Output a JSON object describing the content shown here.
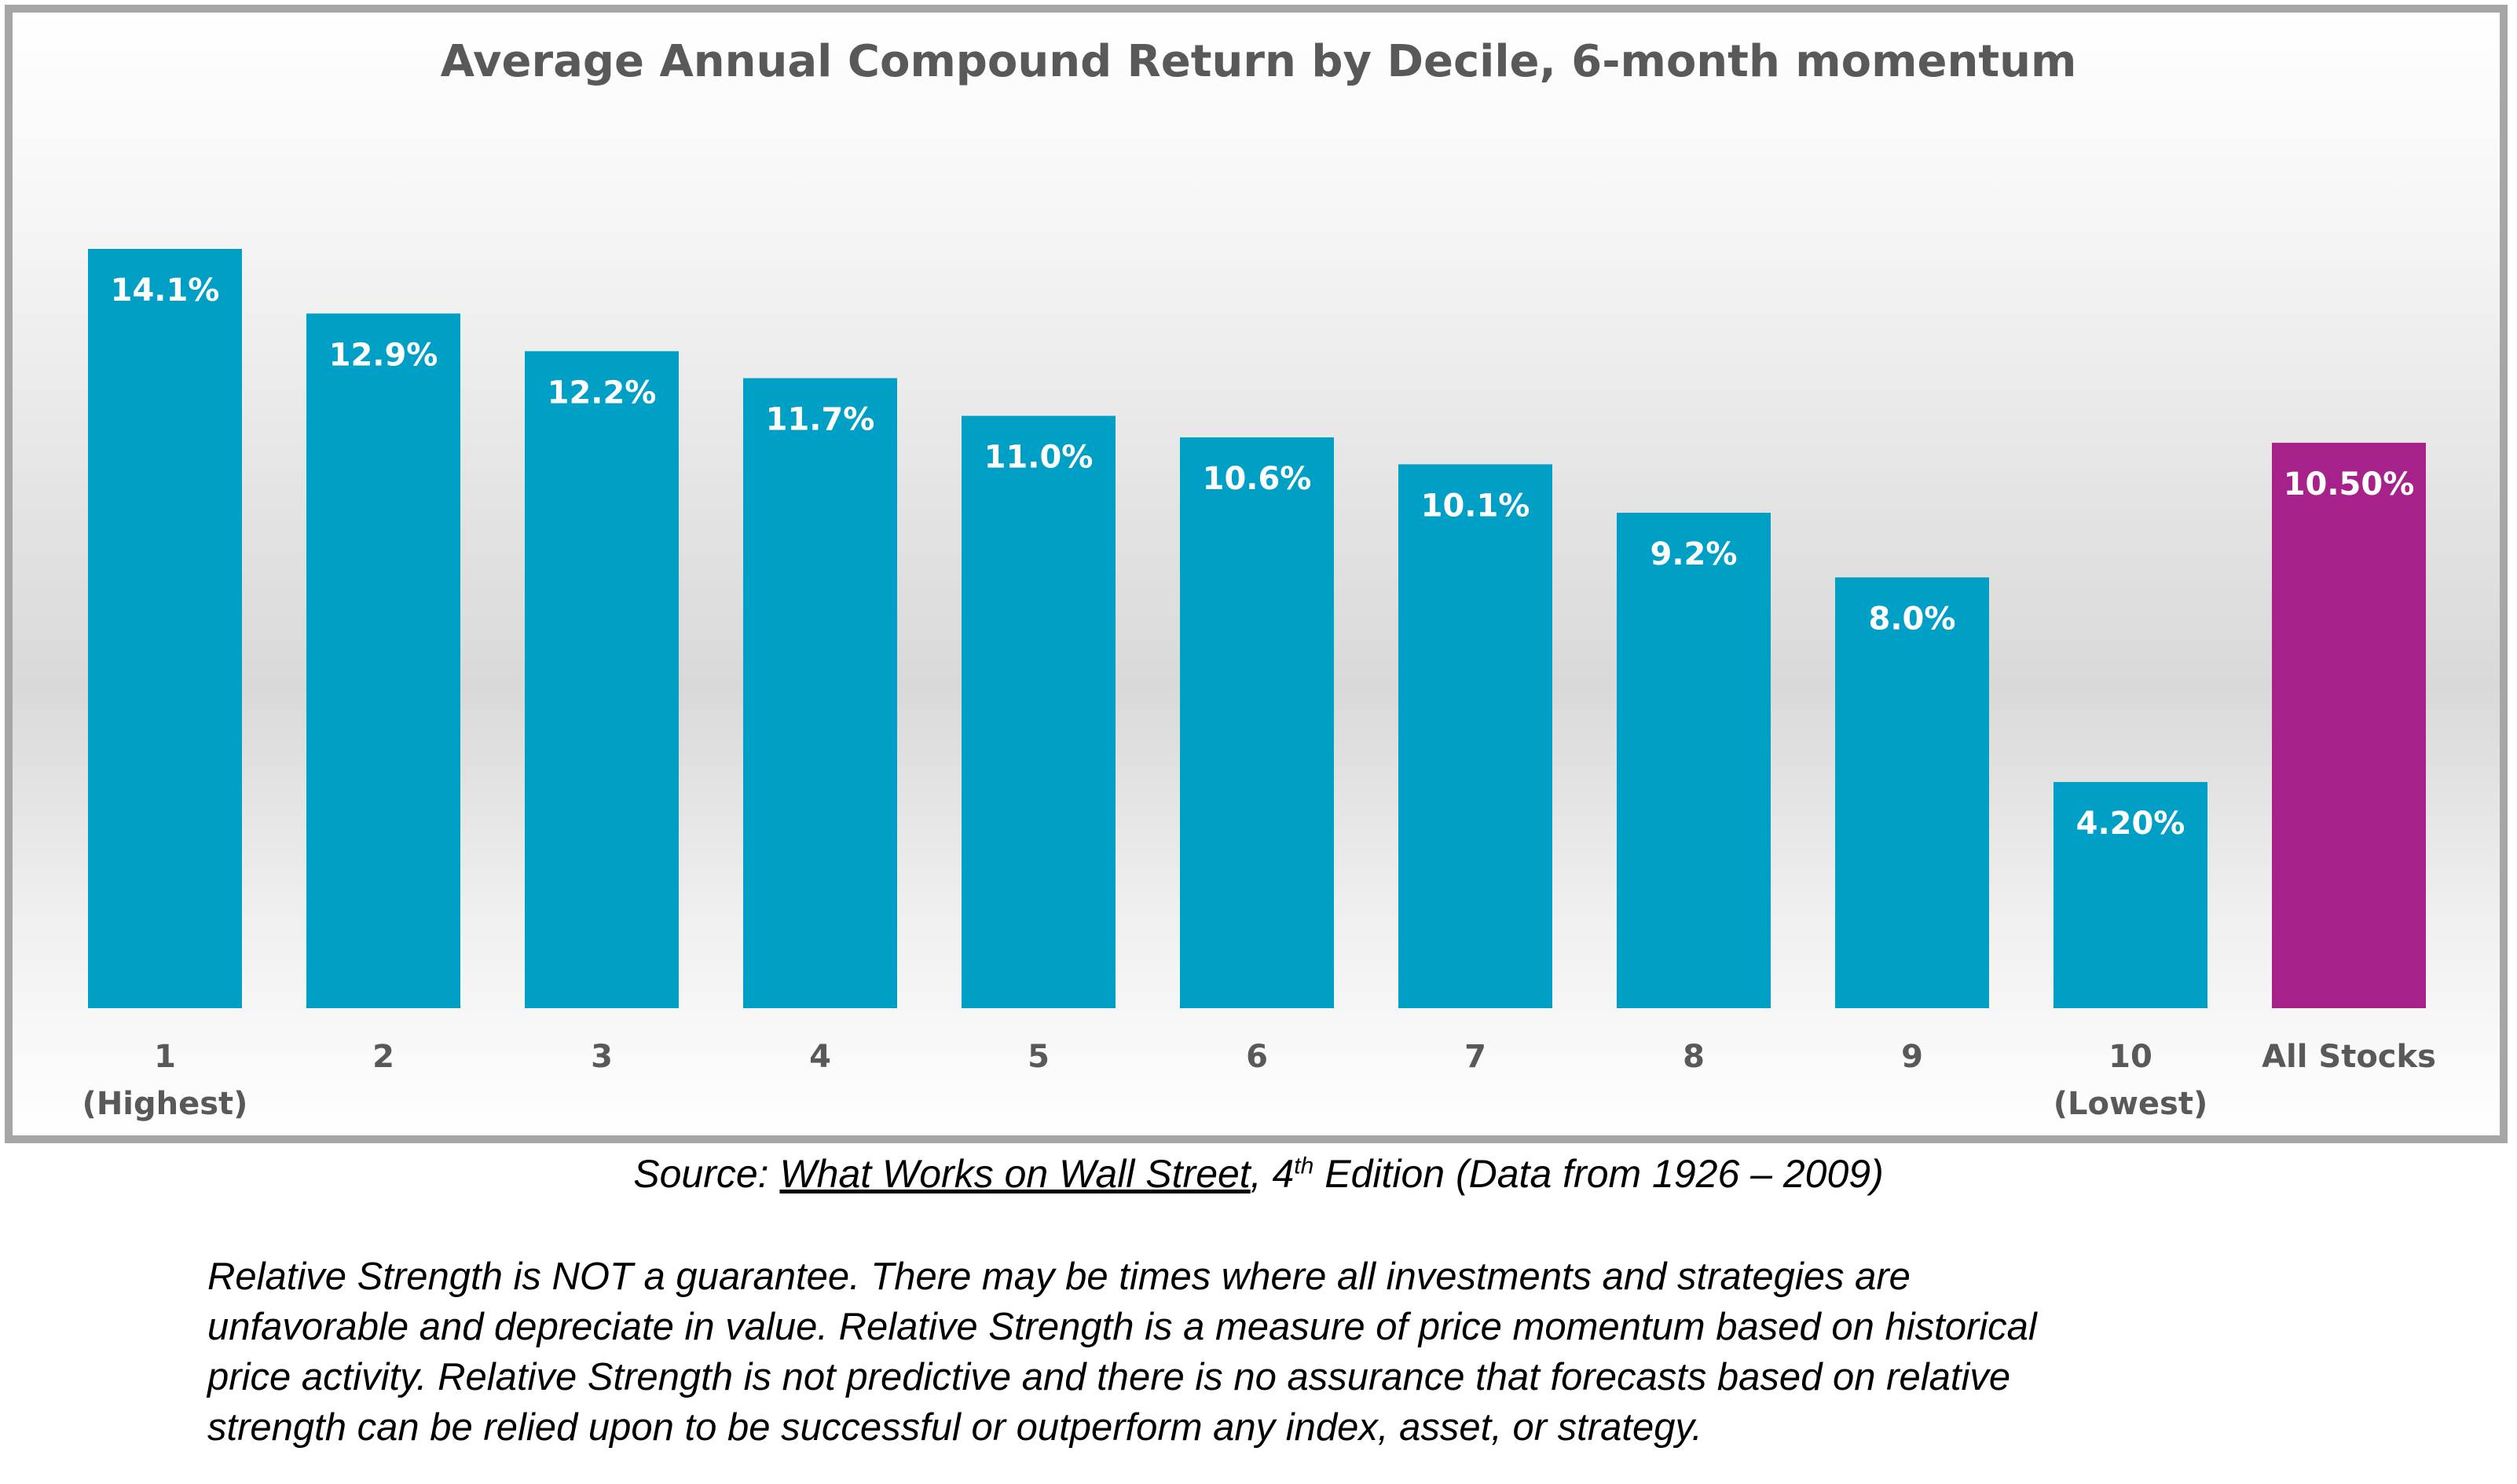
{
  "chart_data": {
    "type": "bar",
    "title": "Average Annual Compound Return by Decile, 6-month momentum",
    "categories": [
      [
        "1",
        "(Highest)"
      ],
      [
        "2"
      ],
      [
        "3"
      ],
      [
        "4"
      ],
      [
        "5"
      ],
      [
        "6"
      ],
      [
        "7"
      ],
      [
        "8"
      ],
      [
        "9"
      ],
      [
        "10",
        "(Lowest)"
      ],
      [
        "All Stocks"
      ]
    ],
    "values": [
      14.1,
      12.9,
      12.2,
      11.7,
      11.0,
      10.6,
      10.1,
      9.2,
      8.0,
      4.2,
      10.5
    ],
    "data_labels": [
      "14.1%",
      "12.9%",
      "12.2%",
      "11.7%",
      "11.0%",
      "10.6%",
      "10.1%",
      "9.2%",
      "8.0%",
      "4.20%",
      "10.50%"
    ],
    "xlabel": "",
    "ylabel": "",
    "ylim": [
      0,
      14.1
    ],
    "grid": false,
    "legend": "none",
    "colors": {
      "deciles": "#009fc6",
      "all_stocks": "#a6228a"
    }
  },
  "source": {
    "prefix": "Source: ",
    "book_title": "What Works on Wall Street",
    "edition_number": ", 4",
    "edition_sup": "th",
    "suffix": " Edition (Data from 1926 – 2009)"
  },
  "disclaimer_lines": [
    "Relative Strength is NOT a guarantee.  There may be times where all investments and strategies are",
    "unfavorable and depreciate in value.  Relative Strength is a measure of price momentum based on historical",
    "price activity.  Relative Strength is not predictive and there is no assurance that forecasts based on relative",
    "strength can be relied upon to be successful or outperform any index, asset, or strategy."
  ]
}
